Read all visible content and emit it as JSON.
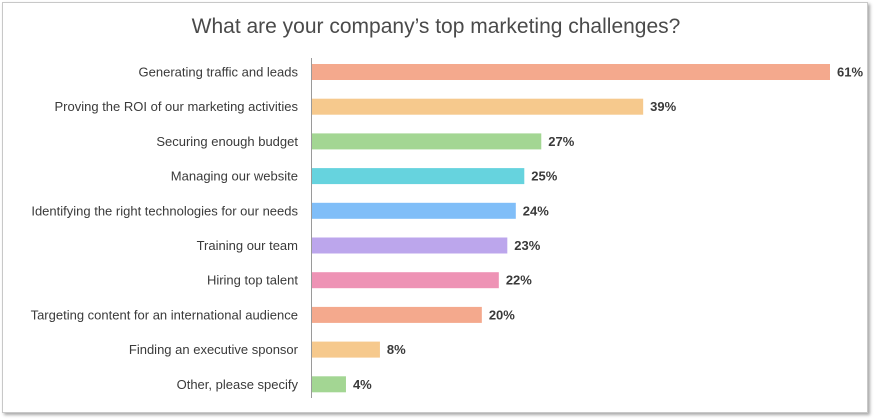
{
  "chart_data": {
    "type": "bar",
    "orientation": "horizontal",
    "title": "What are your company’s top marketing challenges?",
    "categories": [
      "Generating traffic and leads",
      "Proving the ROI of our marketing activities",
      "Securing enough budget",
      "Managing our website",
      "Identifying the right technologies for our needs",
      "Training our team",
      "Hiring top talent",
      "Targeting content for an international audience",
      "Finding an executive sponsor",
      "Other, please specify"
    ],
    "values": [
      61,
      39,
      27,
      25,
      24,
      23,
      22,
      20,
      8,
      4
    ],
    "value_labels": [
      "61%",
      "39%",
      "27%",
      "25%",
      "24%",
      "23%",
      "22%",
      "20%",
      "8%",
      "4%"
    ],
    "colors": [
      "#f4a98d",
      "#f6c98d",
      "#a3d693",
      "#66d3de",
      "#80bef8",
      "#bca6ec",
      "#ee93b5",
      "#f4a98d",
      "#f6c98d",
      "#a3d693"
    ],
    "xlim": [
      0,
      61
    ],
    "grid": false,
    "legend": false
  }
}
